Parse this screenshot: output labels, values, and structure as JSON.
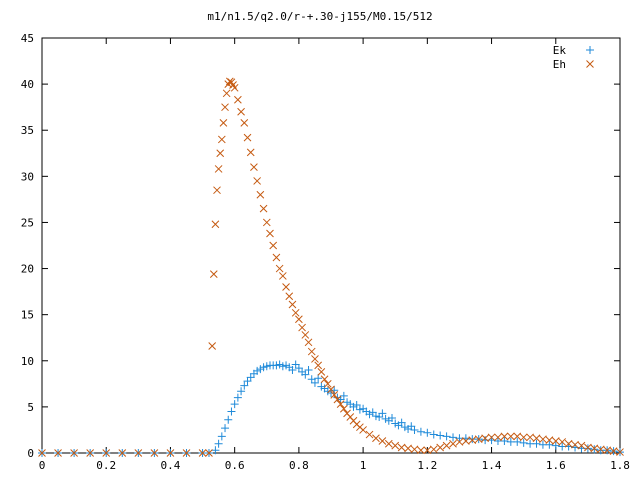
{
  "chart_data": {
    "type": "scatter",
    "title": "m1/n1.5/q2.0/r-+.30-j155/M0.15/512",
    "xlabel": "",
    "ylabel": "",
    "xlim": [
      0,
      1.8
    ],
    "ylim": [
      0,
      45
    ],
    "x_ticks": [
      "0",
      "0.2",
      "0.4",
      "0.6",
      "0.8",
      "1",
      "1.2",
      "1.4",
      "1.6",
      "1.8"
    ],
    "y_ticks": [
      "0",
      "5",
      "10",
      "15",
      "20",
      "25",
      "30",
      "35",
      "40",
      "45"
    ],
    "grid": false,
    "legend_position": "top-right",
    "series": [
      {
        "name": "Ek",
        "marker": "plus",
        "color": "#1f8ad9",
        "points": [
          [
            0.0,
            0
          ],
          [
            0.05,
            0
          ],
          [
            0.1,
            0
          ],
          [
            0.15,
            0
          ],
          [
            0.2,
            0
          ],
          [
            0.25,
            0
          ],
          [
            0.3,
            0
          ],
          [
            0.35,
            0
          ],
          [
            0.4,
            0
          ],
          [
            0.45,
            0
          ],
          [
            0.5,
            0
          ],
          [
            0.52,
            0
          ],
          [
            0.54,
            0.3
          ],
          [
            0.55,
            1.0
          ],
          [
            0.56,
            1.8
          ],
          [
            0.57,
            2.7
          ],
          [
            0.58,
            3.6
          ],
          [
            0.59,
            4.5
          ],
          [
            0.6,
            5.3
          ],
          [
            0.61,
            6.0
          ],
          [
            0.62,
            6.7
          ],
          [
            0.63,
            7.3
          ],
          [
            0.64,
            7.8
          ],
          [
            0.65,
            8.2
          ],
          [
            0.66,
            8.6
          ],
          [
            0.67,
            8.9
          ],
          [
            0.68,
            9.1
          ],
          [
            0.69,
            9.3
          ],
          [
            0.7,
            9.4
          ],
          [
            0.71,
            9.5
          ],
          [
            0.72,
            9.5
          ],
          [
            0.73,
            9.5
          ],
          [
            0.74,
            9.6
          ],
          [
            0.75,
            9.4
          ],
          [
            0.76,
            9.5
          ],
          [
            0.77,
            9.3
          ],
          [
            0.78,
            9.0
          ],
          [
            0.79,
            9.6
          ],
          [
            0.8,
            9.2
          ],
          [
            0.81,
            8.8
          ],
          [
            0.82,
            8.5
          ],
          [
            0.83,
            9.0
          ],
          [
            0.84,
            8.0
          ],
          [
            0.85,
            7.6
          ],
          [
            0.86,
            8.1
          ],
          [
            0.87,
            7.2
          ],
          [
            0.88,
            7.0
          ],
          [
            0.89,
            6.7
          ],
          [
            0.9,
            6.5
          ],
          [
            0.91,
            6.8
          ],
          [
            0.92,
            6.0
          ],
          [
            0.93,
            5.8
          ],
          [
            0.94,
            6.2
          ],
          [
            0.95,
            5.5
          ],
          [
            0.96,
            5.3
          ],
          [
            0.97,
            5.0
          ],
          [
            0.98,
            5.2
          ],
          [
            0.99,
            4.7
          ],
          [
            1.0,
            4.8
          ],
          [
            1.01,
            4.5
          ],
          [
            1.02,
            4.2
          ],
          [
            1.03,
            4.4
          ],
          [
            1.04,
            4.0
          ],
          [
            1.05,
            3.9
          ],
          [
            1.06,
            4.3
          ],
          [
            1.07,
            3.7
          ],
          [
            1.08,
            3.5
          ],
          [
            1.09,
            3.8
          ],
          [
            1.1,
            3.2
          ],
          [
            1.11,
            3.0
          ],
          [
            1.12,
            3.3
          ],
          [
            1.13,
            2.8
          ],
          [
            1.14,
            2.6
          ],
          [
            1.15,
            2.9
          ],
          [
            1.16,
            2.5
          ],
          [
            1.18,
            2.3
          ],
          [
            1.2,
            2.2
          ],
          [
            1.22,
            2.0
          ],
          [
            1.24,
            1.9
          ],
          [
            1.26,
            1.8
          ],
          [
            1.28,
            1.7
          ],
          [
            1.3,
            1.6
          ],
          [
            1.32,
            1.6
          ],
          [
            1.34,
            1.5
          ],
          [
            1.36,
            1.5
          ],
          [
            1.38,
            1.4
          ],
          [
            1.4,
            1.4
          ],
          [
            1.42,
            1.3
          ],
          [
            1.44,
            1.3
          ],
          [
            1.46,
            1.2
          ],
          [
            1.48,
            1.2
          ],
          [
            1.5,
            1.1
          ],
          [
            1.52,
            1.0
          ],
          [
            1.54,
            1.0
          ],
          [
            1.56,
            0.9
          ],
          [
            1.58,
            0.9
          ],
          [
            1.6,
            0.8
          ],
          [
            1.62,
            0.7
          ],
          [
            1.64,
            0.7
          ],
          [
            1.66,
            0.6
          ],
          [
            1.68,
            0.5
          ],
          [
            1.7,
            0.5
          ],
          [
            1.72,
            0.4
          ],
          [
            1.74,
            0.3
          ],
          [
            1.76,
            0.3
          ],
          [
            1.78,
            0.2
          ],
          [
            1.8,
            0.1
          ]
        ]
      },
      {
        "name": "Eh",
        "marker": "cross",
        "color": "#c55a11",
        "points": [
          [
            0.0,
            0
          ],
          [
            0.05,
            0
          ],
          [
            0.1,
            0
          ],
          [
            0.15,
            0
          ],
          [
            0.2,
            0
          ],
          [
            0.25,
            0
          ],
          [
            0.3,
            0
          ],
          [
            0.35,
            0
          ],
          [
            0.4,
            0
          ],
          [
            0.45,
            0
          ],
          [
            0.5,
            0
          ],
          [
            0.52,
            0
          ],
          [
            0.53,
            11.6
          ],
          [
            0.535,
            19.4
          ],
          [
            0.54,
            24.8
          ],
          [
            0.545,
            28.5
          ],
          [
            0.55,
            30.8
          ],
          [
            0.555,
            32.5
          ],
          [
            0.56,
            34.0
          ],
          [
            0.565,
            35.8
          ],
          [
            0.57,
            37.5
          ],
          [
            0.575,
            39.0
          ],
          [
            0.58,
            40.0
          ],
          [
            0.585,
            40.3
          ],
          [
            0.59,
            40.2
          ],
          [
            0.595,
            39.9
          ],
          [
            0.6,
            39.6
          ],
          [
            0.61,
            38.3
          ],
          [
            0.62,
            37.0
          ],
          [
            0.63,
            35.8
          ],
          [
            0.64,
            34.2
          ],
          [
            0.65,
            32.6
          ],
          [
            0.66,
            31.0
          ],
          [
            0.67,
            29.5
          ],
          [
            0.68,
            28.0
          ],
          [
            0.69,
            26.5
          ],
          [
            0.7,
            25.0
          ],
          [
            0.71,
            23.8
          ],
          [
            0.72,
            22.5
          ],
          [
            0.73,
            21.2
          ],
          [
            0.74,
            20.0
          ],
          [
            0.75,
            19.2
          ],
          [
            0.76,
            18.0
          ],
          [
            0.77,
            17.0
          ],
          [
            0.78,
            16.1
          ],
          [
            0.79,
            15.2
          ],
          [
            0.8,
            14.5
          ],
          [
            0.81,
            13.6
          ],
          [
            0.82,
            12.8
          ],
          [
            0.83,
            12.0
          ],
          [
            0.84,
            11.0
          ],
          [
            0.85,
            10.2
          ],
          [
            0.86,
            9.5
          ],
          [
            0.87,
            8.8
          ],
          [
            0.88,
            8.0
          ],
          [
            0.89,
            7.5
          ],
          [
            0.9,
            6.9
          ],
          [
            0.91,
            6.3
          ],
          [
            0.92,
            5.8
          ],
          [
            0.93,
            5.3
          ],
          [
            0.94,
            4.8
          ],
          [
            0.95,
            4.3
          ],
          [
            0.96,
            3.9
          ],
          [
            0.97,
            3.5
          ],
          [
            0.98,
            3.1
          ],
          [
            0.99,
            2.8
          ],
          [
            1.0,
            2.5
          ],
          [
            1.02,
            2.0
          ],
          [
            1.04,
            1.6
          ],
          [
            1.06,
            1.3
          ],
          [
            1.08,
            1.0
          ],
          [
            1.1,
            0.8
          ],
          [
            1.12,
            0.6
          ],
          [
            1.14,
            0.5
          ],
          [
            1.16,
            0.4
          ],
          [
            1.18,
            0.3
          ],
          [
            1.2,
            0.3
          ],
          [
            1.22,
            0.4
          ],
          [
            1.24,
            0.6
          ],
          [
            1.26,
            0.8
          ],
          [
            1.28,
            1.0
          ],
          [
            1.3,
            1.2
          ],
          [
            1.32,
            1.3
          ],
          [
            1.34,
            1.4
          ],
          [
            1.36,
            1.5
          ],
          [
            1.38,
            1.6
          ],
          [
            1.4,
            1.7
          ],
          [
            1.42,
            1.7
          ],
          [
            1.44,
            1.8
          ],
          [
            1.46,
            1.8
          ],
          [
            1.48,
            1.8
          ],
          [
            1.5,
            1.7
          ],
          [
            1.52,
            1.7
          ],
          [
            1.54,
            1.6
          ],
          [
            1.56,
            1.5
          ],
          [
            1.58,
            1.4
          ],
          [
            1.6,
            1.3
          ],
          [
            1.62,
            1.2
          ],
          [
            1.64,
            1.0
          ],
          [
            1.66,
            0.9
          ],
          [
            1.68,
            0.8
          ],
          [
            1.7,
            0.6
          ],
          [
            1.72,
            0.5
          ],
          [
            1.74,
            0.4
          ],
          [
            1.76,
            0.3
          ],
          [
            1.78,
            0.2
          ],
          [
            1.8,
            0.1
          ]
        ]
      }
    ]
  }
}
